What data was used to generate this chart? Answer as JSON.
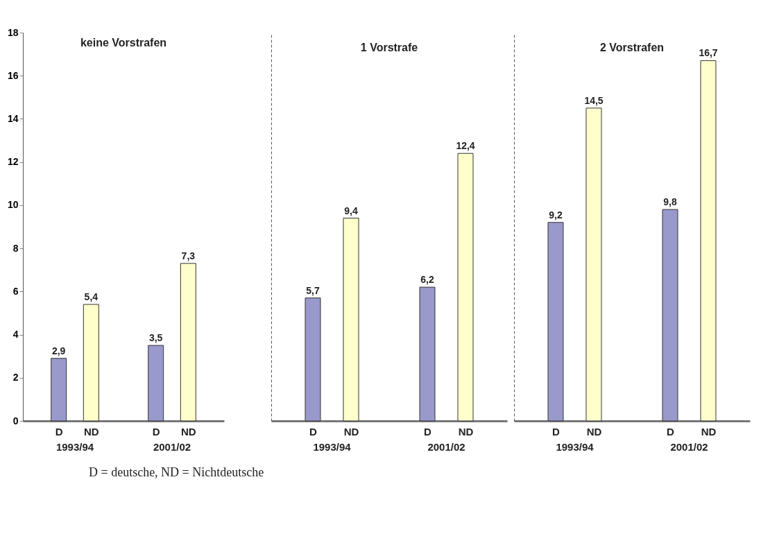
{
  "chart_data": [
    {
      "type": "bar",
      "title": "keine Vorstrafen",
      "categories": [
        "D",
        "ND",
        "D",
        "ND"
      ],
      "values": [
        2.9,
        5.4,
        3.5,
        7.3
      ],
      "colors": [
        "#9999cc",
        "#ffffcc",
        "#9999cc",
        "#ffffcc"
      ],
      "value_labels": [
        "2,9",
        "5,4",
        "3,5",
        "7,3"
      ],
      "ylim": [
        0,
        18
      ],
      "yticks": [
        0,
        2,
        4,
        6,
        8,
        10,
        12,
        14,
        16,
        18
      ],
      "grid": false,
      "annotations": [
        "1993/94",
        "2001/02",
        "D = deutsche, ND = Nichtdeutsche"
      ]
    },
    {
      "type": "bar",
      "title": "1 Vorstrafe",
      "categories": [
        "D",
        "ND",
        "D",
        "ND"
      ],
      "values": [
        5.7,
        9.4,
        6.2,
        12.4
      ],
      "colors": [
        "#9999cc",
        "#ffffcc",
        "#9999cc",
        "#ffffcc"
      ],
      "value_labels": [
        "5,7",
        "9,4",
        "6,2",
        "12,4"
      ],
      "ylim": [
        0,
        18
      ],
      "yticks": [
        0,
        2,
        4,
        6,
        8,
        10,
        12,
        14,
        16,
        18
      ],
      "grid": false,
      "tick_labels": "x",
      "annotations": [
        "1993/94",
        "2001/02"
      ]
    },
    {
      "type": "bar",
      "title": "2 Vorstrafen",
      "categories": [
        "D",
        "ND",
        "D",
        "ND"
      ],
      "values": [
        9.2,
        14.5,
        9.8,
        16.7
      ],
      "colors": [
        "#9999cc",
        "#ffffcc",
        "#9999cc",
        "#ffffcc"
      ],
      "value_labels": [
        "9,2",
        "14,5",
        "9,8",
        "16,7"
      ],
      "ylim": [
        0,
        18
      ],
      "yticks": [
        0,
        2,
        4,
        6,
        8,
        10,
        12,
        14,
        16,
        18
      ],
      "grid": false,
      "tick_labels": "x",
      "annotations": [
        "1993/94",
        "2001/02"
      ]
    }
  ]
}
